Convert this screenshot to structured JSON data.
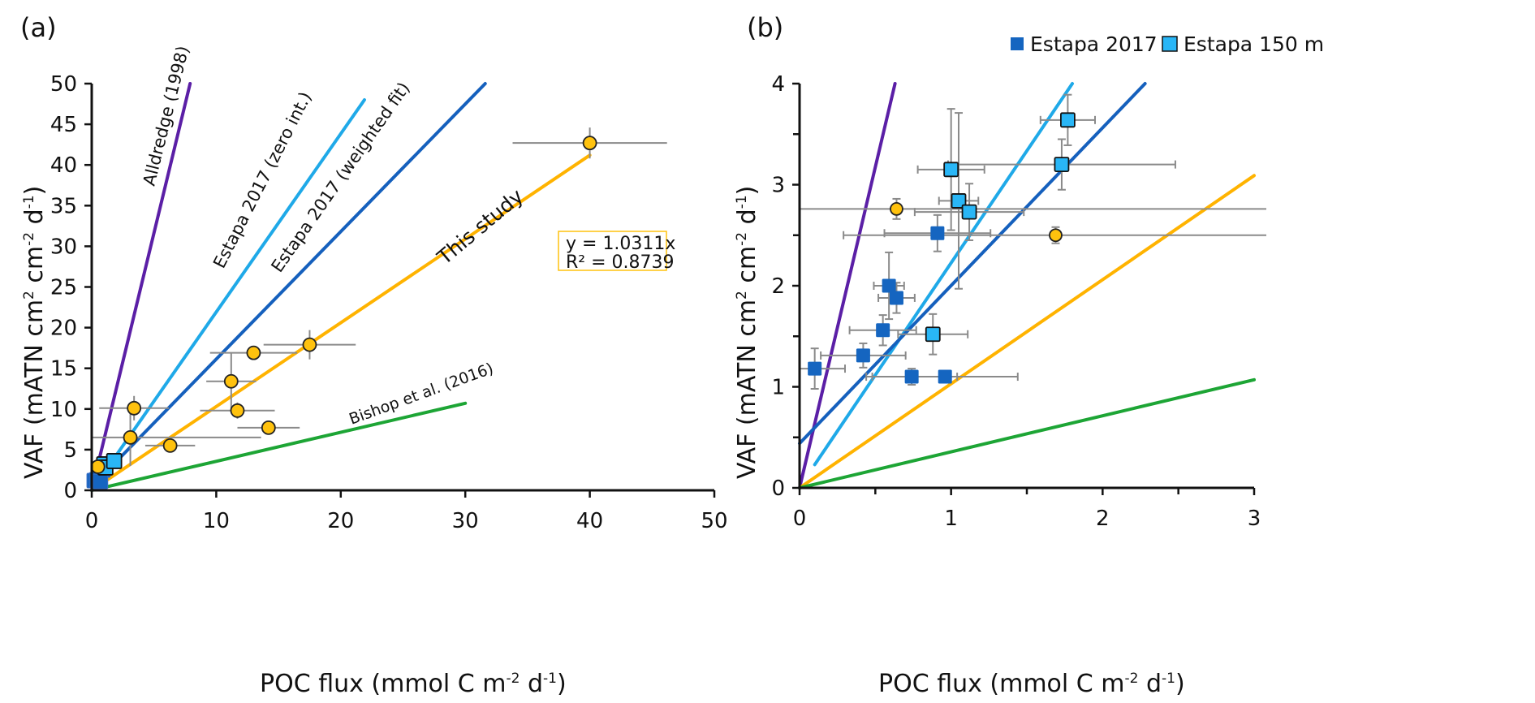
{
  "chart_data": [
    {
      "panel": "(a)",
      "type": "scatter",
      "xlabel": "POC flux (mmol C m-2 d-1)",
      "ylabel": "VAF (mATN cm2 cm-2 d-1)",
      "xlim": [
        0,
        50
      ],
      "ylim": [
        0,
        50
      ],
      "xticks": [
        0,
        10,
        20,
        30,
        40,
        50
      ],
      "yticks": [
        0,
        5,
        10,
        15,
        20,
        25,
        30,
        35,
        40,
        45,
        50
      ],
      "grid": false,
      "series": [
        {
          "name": "This study",
          "marker": "circle",
          "color": "#FFC20E",
          "points": [
            {
              "x": 0.5,
              "y": 2.9,
              "xerr": 1.0,
              "yerr": 0.6
            },
            {
              "x": 3.1,
              "y": 6.5,
              "xerr": 10.5,
              "yerr": 3.5
            },
            {
              "x": 3.4,
              "y": 10.1,
              "xerr": 2.8,
              "yerr": 1.5
            },
            {
              "x": 6.3,
              "y": 5.5,
              "xerr": 2.0,
              "yerr": 0.6
            },
            {
              "x": 11.2,
              "y": 13.4,
              "xerr": 2.0,
              "yerr": 3.5
            },
            {
              "x": 11.7,
              "y": 9.8,
              "xerr": 3.0,
              "yerr": 1.0
            },
            {
              "x": 13.0,
              "y": 16.9,
              "xerr": 3.5,
              "yerr": 0.5
            },
            {
              "x": 14.2,
              "y": 7.7,
              "xerr": 2.5,
              "yerr": 0.4
            },
            {
              "x": 17.5,
              "y": 17.9,
              "xerr": 3.7,
              "yerr": 1.8
            },
            {
              "x": 40.0,
              "y": 42.7,
              "xerr": 6.2,
              "yerr": 1.9
            }
          ]
        },
        {
          "name": "Estapa 2017",
          "marker": "square",
          "color": "#1565C0",
          "points": [
            {
              "x": 0.2,
              "y": 1.2
            },
            {
              "x": 0.4,
              "y": 1.3
            },
            {
              "x": 0.6,
              "y": 1.9
            },
            {
              "x": 0.9,
              "y": 2.5
            },
            {
              "x": 0.7,
              "y": 1.1
            }
          ]
        },
        {
          "name": "Estapa 150 m",
          "marker": "square",
          "color": "#29B6F6",
          "points": [
            {
              "x": 1.0,
              "y": 3.2
            },
            {
              "x": 1.1,
              "y": 2.8
            },
            {
              "x": 1.8,
              "y": 3.6
            }
          ]
        }
      ],
      "lines": [
        {
          "name": "Alldredge (1998)",
          "color": "#5B1FA6",
          "from": [
            0,
            0
          ],
          "to": [
            7.9,
            50
          ]
        },
        {
          "name": "Estapa 2017 (zero int.)",
          "color": "#1FA9E8",
          "from": [
            0,
            0
          ],
          "to": [
            21.9,
            48
          ]
        },
        {
          "name": "Estapa 2017 (weighted fit)",
          "color": "#1560BD",
          "from": [
            0,
            0.44
          ],
          "to": [
            31.6,
            50
          ]
        },
        {
          "name": "This study",
          "color": "#FFB300",
          "from": [
            0,
            0
          ],
          "to": [
            40,
            41.2
          ]
        },
        {
          "name": "Bishop et al. (2016)",
          "color": "#1DA535",
          "from": [
            0,
            0
          ],
          "to": [
            30,
            10.7
          ]
        }
      ],
      "annotation": {
        "equation": "y = 1.0311x",
        "r2": "R² = 0.8739"
      }
    },
    {
      "panel": "(b)",
      "type": "scatter",
      "xlabel": "POC flux (mmol C m-2 d-1)",
      "ylabel": "VAF (mATN cm2 cm-2 d-1)",
      "xlim": [
        0,
        3
      ],
      "ylim": [
        0,
        4
      ],
      "xticks": [
        0,
        1,
        2,
        3
      ],
      "yticks": [
        0,
        1,
        2,
        3,
        4
      ],
      "grid": false,
      "legend": {
        "position": "top",
        "entries": [
          "Estapa 2017",
          "Estapa 150 m"
        ]
      },
      "series": [
        {
          "name": "Estapa 2017",
          "marker": "square",
          "color": "#1565C0",
          "points": [
            {
              "x": 0.1,
              "y": 1.18,
              "xerr": 0.2,
              "yerr": 0.2
            },
            {
              "x": 0.42,
              "y": 1.31,
              "xerr": 0.28,
              "yerr": 0.12
            },
            {
              "x": 0.55,
              "y": 1.56,
              "xerr": 0.22,
              "yerr": 0.15
            },
            {
              "x": 0.59,
              "y": 2.0,
              "xerr": 0.1,
              "yerr": 0.33
            },
            {
              "x": 0.64,
              "y": 1.88,
              "xerr": 0.12,
              "yerr": 0.15
            },
            {
              "x": 0.74,
              "y": 1.1,
              "xerr": 0.3,
              "yerr": 0.08
            },
            {
              "x": 0.91,
              "y": 2.52,
              "xerr": 0.35,
              "yerr": 0.18
            },
            {
              "x": 0.96,
              "y": 1.1,
              "xerr": 0.48,
              "yerr": 0.05
            }
          ]
        },
        {
          "name": "Estapa 150 m",
          "marker": "square",
          "color": "#29B6F6",
          "points": [
            {
              "x": 0.88,
              "y": 1.52,
              "xerr": 0.23,
              "yerr": 0.2
            },
            {
              "x": 1.0,
              "y": 3.15,
              "xerr": 0.22,
              "yerr": 0.6
            },
            {
              "x": 1.05,
              "y": 2.84,
              "xerr": 0.13,
              "yerr": 0.87
            },
            {
              "x": 1.12,
              "y": 2.73,
              "xerr": 0.36,
              "yerr": 0.28
            },
            {
              "x": 1.73,
              "y": 3.2,
              "xerr": 0.75,
              "yerr": 0.25
            },
            {
              "x": 1.77,
              "y": 3.64,
              "xerr": 0.18,
              "yerr": 0.25
            }
          ]
        },
        {
          "name": "This study",
          "marker": "circle",
          "color": "#FFC20E",
          "points": [
            {
              "x": 0.64,
              "y": 2.76,
              "xerr": 2.6,
              "yerr": 0.1
            },
            {
              "x": 1.69,
              "y": 2.5,
              "xerr": 1.4,
              "yerr": 0.08
            }
          ]
        }
      ],
      "lines": [
        {
          "name": "Alldredge (1998)",
          "color": "#5B1FA6",
          "from": [
            0,
            0
          ],
          "to": [
            0.63,
            4
          ]
        },
        {
          "name": "Estapa 2017 (zero int.)",
          "color": "#1FA9E8",
          "from": [
            0.1,
            0.23
          ],
          "to": [
            1.8,
            4
          ]
        },
        {
          "name": "Estapa 2017 (weighted fit)",
          "color": "#1560BD",
          "from": [
            0,
            0.44
          ],
          "to": [
            2.28,
            4
          ]
        },
        {
          "name": "This study",
          "color": "#FFB300",
          "from": [
            0,
            0
          ],
          "to": [
            3,
            3.09
          ]
        },
        {
          "name": "Bishop et al. (2016)",
          "color": "#1DA535",
          "from": [
            0,
            0
          ],
          "to": [
            3,
            1.07
          ]
        }
      ]
    }
  ],
  "labels": {
    "panel_a": "(a)",
    "panel_b": "(b)",
    "xlabel_main": "POC flux (mmol C m",
    "xlabel_sup1": "-2",
    "xlabel_mid": " d",
    "xlabel_sup2": "-1",
    "xlabel_end": ")",
    "ylabel_main": "VAF (mATN cm",
    "ylabel_sup1": "2",
    "ylabel_mid": " cm",
    "ylabel_sup2": "-2",
    "ylabel_mid2": " d",
    "ylabel_sup3": "-1",
    "ylabel_end": ")",
    "legend_1": "Estapa 2017",
    "legend_2": "Estapa 150 m",
    "line_alldredge": "Alldredge (1998)",
    "line_zero": "Estapa 2017 (zero int.)",
    "line_weighted": "Estapa 2017 (weighted fit)",
    "line_this": "This study",
    "line_bishop": "Bishop et al. (2016)",
    "eq_1": "y = 1.0311x",
    "eq_2": "R² = 0.8739"
  }
}
